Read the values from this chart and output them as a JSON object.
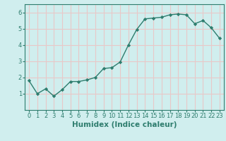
{
  "x": [
    0,
    1,
    2,
    3,
    4,
    5,
    6,
    7,
    8,
    9,
    10,
    11,
    12,
    13,
    14,
    15,
    16,
    17,
    18,
    19,
    20,
    21,
    22,
    23
  ],
  "y": [
    1.8,
    1.0,
    1.3,
    0.85,
    1.25,
    1.75,
    1.75,
    1.85,
    2.0,
    2.55,
    2.6,
    2.95,
    4.0,
    4.95,
    5.6,
    5.65,
    5.7,
    5.85,
    5.9,
    5.85,
    5.3,
    5.5,
    5.05,
    4.4
  ],
  "line_color": "#2e7d6e",
  "marker": "D",
  "marker_size": 2.2,
  "xlabel": "Humidex (Indice chaleur)",
  "ylim": [
    0,
    6.5
  ],
  "xlim": [
    -0.5,
    23.5
  ],
  "yticks": [
    1,
    2,
    3,
    4,
    5,
    6
  ],
  "xticks": [
    0,
    1,
    2,
    3,
    4,
    5,
    6,
    7,
    8,
    9,
    10,
    11,
    12,
    13,
    14,
    15,
    16,
    17,
    18,
    19,
    20,
    21,
    22,
    23
  ],
  "background_color": "#d0eeee",
  "grid_color": "#e8c8c8",
  "tick_label_fontsize": 6,
  "xlabel_fontsize": 7.5,
  "line_width": 1.0
}
